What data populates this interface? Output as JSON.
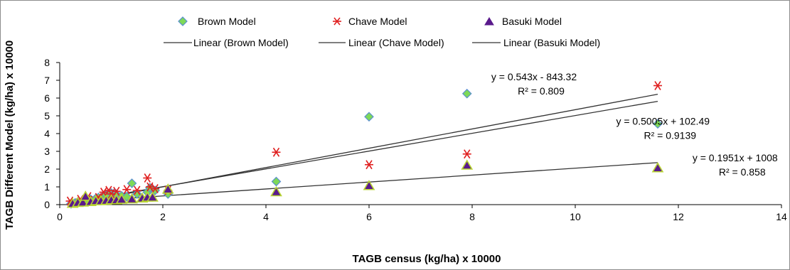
{
  "chart_data": {
    "type": "scatter",
    "xlabel": "TAGB census (kg/ha)  x 10000",
    "ylabel": "TAGB Different  Model (kg/ha) x 10000",
    "xlim": [
      0,
      14
    ],
    "ylim": [
      0,
      8
    ],
    "xticks": [
      0,
      2,
      4,
      6,
      8,
      10,
      12,
      14
    ],
    "yticks": [
      0,
      1,
      2,
      3,
      4,
      5,
      6,
      7,
      8
    ],
    "grid": false,
    "legend_position": "top",
    "series": [
      {
        "name": "Brown Model",
        "marker": "diamond",
        "color": "#7ed957",
        "points": [
          [
            0.22,
            0.05
          ],
          [
            0.3,
            0.1
          ],
          [
            0.35,
            0.15
          ],
          [
            0.45,
            0.2
          ],
          [
            0.5,
            0.25
          ],
          [
            0.55,
            0.2
          ],
          [
            0.6,
            0.3
          ],
          [
            0.7,
            0.35
          ],
          [
            0.75,
            0.4
          ],
          [
            0.85,
            0.5
          ],
          [
            0.9,
            0.55
          ],
          [
            0.95,
            0.6
          ],
          [
            1.0,
            0.65
          ],
          [
            1.05,
            0.62
          ],
          [
            1.1,
            0.58
          ],
          [
            1.2,
            0.5
          ],
          [
            1.3,
            0.45
          ],
          [
            1.4,
            1.2
          ],
          [
            1.5,
            0.6
          ],
          [
            1.7,
            0.7
          ],
          [
            1.75,
            0.95
          ],
          [
            1.85,
            0.8
          ],
          [
            2.1,
            0.6
          ],
          [
            4.2,
            1.3
          ],
          [
            6.0,
            4.95
          ],
          [
            7.9,
            6.25
          ],
          [
            11.6,
            4.55
          ]
        ]
      },
      {
        "name": "Chave Model",
        "marker": "asterisk",
        "color": "#e02020",
        "points": [
          [
            0.2,
            0.2
          ],
          [
            0.4,
            0.3
          ],
          [
            0.55,
            0.45
          ],
          [
            0.75,
            0.4
          ],
          [
            0.85,
            0.7
          ],
          [
            0.95,
            0.8
          ],
          [
            1.0,
            0.6
          ],
          [
            1.1,
            0.75
          ],
          [
            1.3,
            0.85
          ],
          [
            1.5,
            0.8
          ],
          [
            1.7,
            1.5
          ],
          [
            1.75,
            1.0
          ],
          [
            1.85,
            0.9
          ],
          [
            2.1,
            0.8
          ],
          [
            4.2,
            2.95
          ],
          [
            6.0,
            2.25
          ],
          [
            7.9,
            2.85
          ],
          [
            11.6,
            6.7
          ]
        ]
      },
      {
        "name": "Basuki Model",
        "marker": "triangle",
        "color": "#5a1a8c",
        "points": [
          [
            0.25,
            0.05
          ],
          [
            0.35,
            0.1
          ],
          [
            0.45,
            0.12
          ],
          [
            0.5,
            0.45
          ],
          [
            0.6,
            0.15
          ],
          [
            0.7,
            0.2
          ],
          [
            0.8,
            0.2
          ],
          [
            0.9,
            0.22
          ],
          [
            1.0,
            0.25
          ],
          [
            1.1,
            0.25
          ],
          [
            1.2,
            0.28
          ],
          [
            1.4,
            0.3
          ],
          [
            1.6,
            0.35
          ],
          [
            1.7,
            0.4
          ],
          [
            1.8,
            0.4
          ],
          [
            2.1,
            0.85
          ],
          [
            4.2,
            0.7
          ],
          [
            6.0,
            1.05
          ],
          [
            7.9,
            2.2
          ],
          [
            11.6,
            2.05
          ]
        ]
      }
    ],
    "trendlines": [
      {
        "name": "Linear (Brown Model)",
        "slope": 0.5005,
        "intercept": 102.49,
        "x_range": [
          0.2,
          11.6
        ],
        "color": "#333333"
      },
      {
        "name": "Linear (Chave Model)",
        "slope": 0.543,
        "intercept": -843.32,
        "x_range": [
          0.2,
          11.6
        ],
        "color": "#333333"
      },
      {
        "name": "Linear (Basuki Model)",
        "slope": 0.1951,
        "intercept": 1008,
        "x_range": [
          0.2,
          11.6
        ],
        "color": "#333333"
      }
    ],
    "annotations": [
      {
        "eq": "y = 0.543x - 843.32",
        "r2": "R² = 0.809",
        "at": [
          9.2,
          7.0
        ]
      },
      {
        "eq": "y = 0.5005x + 102.49",
        "r2": "R² = 0.9139",
        "at": [
          11.7,
          4.5
        ]
      },
      {
        "eq": "y = 0.1951x + 1008",
        "r2": "R² = 0.858",
        "at": [
          13.1,
          2.45
        ]
      }
    ]
  }
}
